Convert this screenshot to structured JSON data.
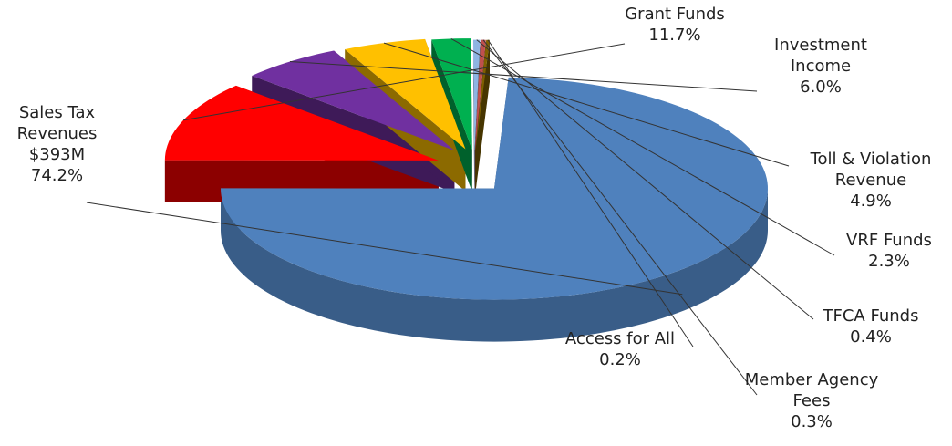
{
  "chart_data": {
    "type": "pie3d",
    "categories": [
      "Sales Tax Revenues",
      "Grant Funds",
      "Investment Income",
      "Toll & Violation Revenue",
      "VRF Funds",
      "TFCA Funds",
      "Member Agency Fees",
      "Access for All"
    ],
    "values": [
      74.2,
      11.7,
      6.0,
      4.9,
      2.3,
      0.4,
      0.3,
      0.2
    ],
    "value_labels": [
      "74.2%",
      "11.7%",
      "6.0%",
      "4.9%",
      "2.3%",
      "0.4%",
      "0.3%",
      "0.2%"
    ],
    "amounts": [
      393,
      null,
      null,
      null,
      null,
      null,
      null,
      null
    ],
    "amount_labels": [
      "$393M",
      null,
      null,
      null,
      null,
      null,
      null,
      null
    ],
    "colors": [
      "#4f81bd",
      "#ff0000",
      "#7030a0",
      "#ffc000",
      "#00b050",
      "#8eb4e3",
      "#c0504d",
      "#7f6000"
    ]
  }
}
